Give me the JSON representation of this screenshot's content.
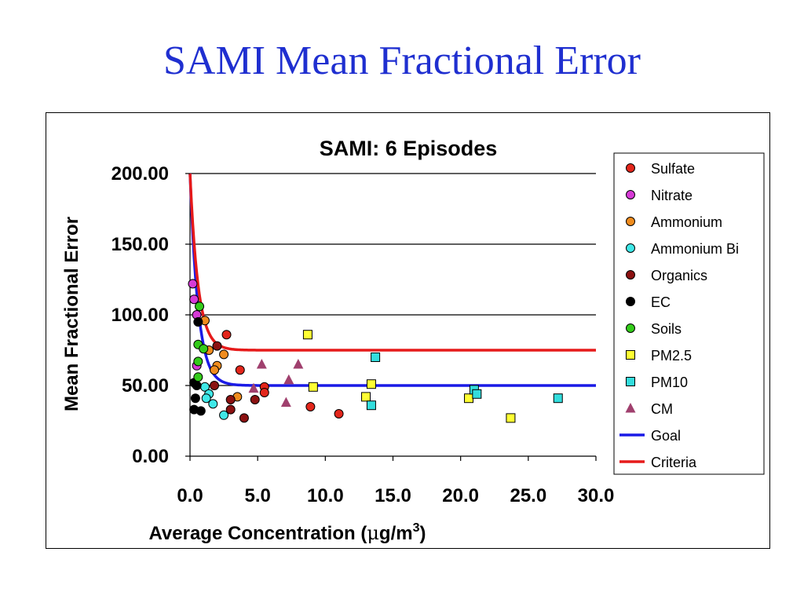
{
  "slide": {
    "title": "SAMI Mean Fractional Error"
  },
  "chart_data": {
    "type": "scatter",
    "title": "SAMI: 6 Episodes",
    "xlabel": "Average Concentration (μg/m3)",
    "xlabel_parts": {
      "prefix": "Average Concentration (",
      "mu": "μ",
      "unit": "g/m",
      "sup": "3",
      "suffix": ")"
    },
    "ylabel": "Mean Fractional Error",
    "xlim": [
      0,
      30
    ],
    "ylim": [
      0,
      200
    ],
    "x_ticks": [
      "0.0",
      "5.0",
      "10.0",
      "15.0",
      "20.0",
      "25.0",
      "30.0"
    ],
    "y_ticks": [
      "0.00",
      "50.00",
      "100.00",
      "150.00",
      "200.00"
    ],
    "grid": "horizontal",
    "legend_position": "right",
    "series": [
      {
        "name": "Sulfate",
        "marker": "circle",
        "color": "#e3261b",
        "points": [
          [
            2.7,
            86
          ],
          [
            3.7,
            61
          ],
          [
            5.5,
            49
          ],
          [
            5.5,
            45
          ],
          [
            8.9,
            35
          ],
          [
            11.0,
            30
          ]
        ]
      },
      {
        "name": "Nitrate",
        "marker": "circle",
        "color": "#d63ad6",
        "points": [
          [
            0.2,
            122
          ],
          [
            0.3,
            111
          ],
          [
            0.5,
            100
          ],
          [
            0.5,
            64
          ]
        ]
      },
      {
        "name": "Ammonium",
        "marker": "circle",
        "color": "#f08c1e",
        "points": [
          [
            1.1,
            96
          ],
          [
            1.4,
            75
          ],
          [
            2.0,
            64
          ],
          [
            2.5,
            72
          ],
          [
            1.8,
            61
          ],
          [
            3.5,
            42
          ]
        ]
      },
      {
        "name": "Ammonium Bi",
        "marker": "circle",
        "color": "#3fe8e8",
        "points": [
          [
            1.1,
            49
          ],
          [
            1.4,
            44
          ],
          [
            1.2,
            41
          ],
          [
            1.7,
            37
          ],
          [
            2.5,
            29
          ]
        ]
      },
      {
        "name": "Organics",
        "marker": "circle",
        "color": "#8b1111",
        "points": [
          [
            2.0,
            78
          ],
          [
            1.8,
            50
          ],
          [
            3.0,
            40
          ],
          [
            3.0,
            33
          ],
          [
            4.0,
            27
          ],
          [
            4.8,
            40
          ]
        ]
      },
      {
        "name": "EC",
        "marker": "circle",
        "color": "#000000",
        "points": [
          [
            0.6,
            95
          ],
          [
            0.3,
            52
          ],
          [
            0.5,
            50
          ],
          [
            0.4,
            41
          ],
          [
            0.3,
            33
          ],
          [
            0.8,
            32
          ]
        ]
      },
      {
        "name": "Soils",
        "marker": "circle",
        "color": "#33cc1a",
        "points": [
          [
            0.7,
            106
          ],
          [
            0.6,
            79
          ],
          [
            1.0,
            76
          ],
          [
            0.6,
            67
          ],
          [
            0.6,
            56
          ]
        ]
      },
      {
        "name": "PM2.5",
        "marker": "square",
        "color": "#ffff33",
        "points": [
          [
            8.7,
            86
          ],
          [
            9.1,
            49
          ],
          [
            13.4,
            51
          ],
          [
            13.0,
            42
          ],
          [
            20.6,
            41
          ],
          [
            23.7,
            27
          ]
        ]
      },
      {
        "name": "PM10",
        "marker": "square",
        "color": "#33dddd",
        "points": [
          [
            13.7,
            70
          ],
          [
            21.0,
            47
          ],
          [
            21.2,
            44
          ],
          [
            13.4,
            36
          ],
          [
            27.2,
            41
          ]
        ]
      },
      {
        "name": "CM",
        "marker": "triangle",
        "color": "#a0406e",
        "points": [
          [
            5.3,
            65
          ],
          [
            8.0,
            65
          ],
          [
            7.3,
            54
          ],
          [
            4.7,
            48
          ],
          [
            7.1,
            38
          ]
        ]
      }
    ],
    "lines": [
      {
        "name": "Goal",
        "color": "#1a1ae6",
        "function": "50 + 150*exp(-x/0.6)",
        "points": [
          [
            0,
            200
          ],
          [
            0.2,
            157
          ],
          [
            0.4,
            127
          ],
          [
            0.6,
            105
          ],
          [
            0.8,
            90
          ],
          [
            1.0,
            79
          ],
          [
            1.3,
            68
          ],
          [
            1.6,
            61
          ],
          [
            2.0,
            55
          ],
          [
            2.5,
            52
          ],
          [
            3.0,
            51
          ],
          [
            4.0,
            50
          ],
          [
            6.0,
            50
          ],
          [
            30.0,
            50
          ]
        ]
      },
      {
        "name": "Criteria",
        "color": "#e61a1a",
        "function": "75 + 125*exp(-x/0.6)",
        "points": [
          [
            0,
            200
          ],
          [
            0.2,
            164
          ],
          [
            0.4,
            139
          ],
          [
            0.6,
            121
          ],
          [
            0.8,
            108
          ],
          [
            1.0,
            99
          ],
          [
            1.3,
            89
          ],
          [
            1.6,
            83
          ],
          [
            2.0,
            79
          ],
          [
            2.5,
            77
          ],
          [
            3.0,
            76
          ],
          [
            4.0,
            75
          ],
          [
            6.0,
            75
          ],
          [
            30.0,
            75
          ]
        ]
      }
    ]
  }
}
